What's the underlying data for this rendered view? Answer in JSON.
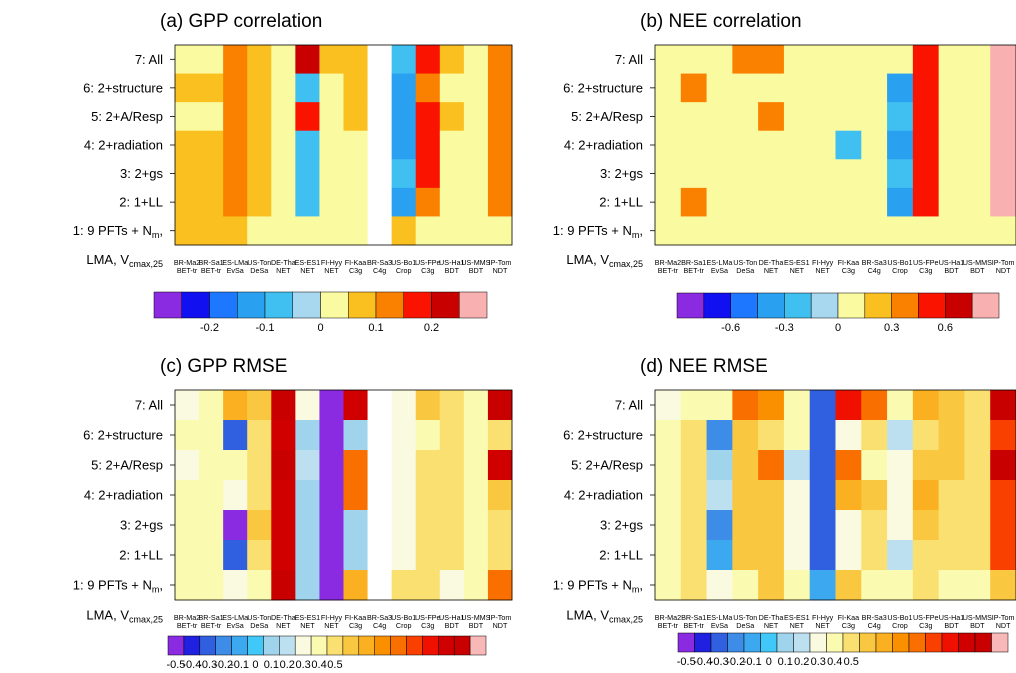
{
  "chart_data": [
    {
      "type": "heatmap",
      "title": "(a) GPP correlation",
      "rows": [
        "7: All",
        "6: 2+structure",
        "5: 2+A/Resp",
        "4: 2+radiation",
        "3: 2+gs",
        "2: 1+LL",
        "1: 9 PFTs + N",
        "LMA, V"
      ],
      "columns": [
        "BR-Ma2",
        "BR-Sa1",
        "ES-LMa",
        "US-Ton",
        "DE-Tha",
        "ES-ES1",
        "FI-Hyy",
        "FI-Kaa",
        "BR-Sa3",
        "US-Bo1",
        "US-FPe",
        "US-Ha1",
        "US-MMS",
        "IP-Tom"
      ],
      "pft_labels": [
        "BET-tr",
        "BET-tr",
        "EvSa",
        "DeSa",
        "NET",
        "NET",
        "NET",
        "C3g",
        "C4g",
        "Crop",
        "C3g",
        "BDT",
        "BDT",
        "NDT"
      ],
      "values": [
        [
          0.0,
          0.0,
          0.1,
          0.05,
          0.0,
          0.2,
          0.05,
          0.05,
          null,
          -0.1,
          0.15,
          0.05,
          0.0,
          0.1
        ],
        [
          0.05,
          0.05,
          0.1,
          0.05,
          0.0,
          -0.1,
          0.0,
          0.05,
          null,
          -0.15,
          0.1,
          0.0,
          0.0,
          0.1
        ],
        [
          0.0,
          0.0,
          0.1,
          0.05,
          0.0,
          0.15,
          0.0,
          0.05,
          null,
          -0.15,
          0.15,
          0.05,
          0.0,
          0.1
        ],
        [
          0.05,
          0.05,
          0.1,
          0.05,
          0.0,
          -0.1,
          0.0,
          0.0,
          null,
          -0.15,
          0.15,
          0.0,
          0.0,
          0.1
        ],
        [
          0.05,
          0.05,
          0.1,
          0.05,
          0.0,
          -0.1,
          0.0,
          0.0,
          null,
          -0.1,
          0.15,
          0.0,
          0.0,
          0.1
        ],
        [
          0.05,
          0.05,
          0.1,
          0.05,
          0.0,
          -0.1,
          0.0,
          0.0,
          null,
          -0.15,
          0.1,
          0.0,
          0.0,
          0.1
        ],
        [
          0.05,
          0.05,
          0.05,
          0.0,
          0.0,
          0.0,
          0.0,
          0.0,
          null,
          0.05,
          0.0,
          0.0,
          0.0,
          0.0
        ]
      ],
      "colorbar_ticks": [
        "-0.2",
        "-0.1",
        "0",
        "0.1",
        "0.2"
      ]
    },
    {
      "type": "heatmap",
      "title": "(b) NEE correlation",
      "rows": [
        "7: All",
        "6: 2+structure",
        "5: 2+A/Resp",
        "4: 2+radiation",
        "3: 2+gs",
        "2: 1+LL",
        "1: 9 PFTs + N",
        "LMA, V"
      ],
      "columns": [
        "BR-Ma2",
        "BR-Sa1",
        "ES-LMa",
        "US-Ton",
        "DE-Tha",
        "ES-ES1",
        "FI-Hyy",
        "FI-Kaa",
        "BR-Sa3",
        "US-Bo1",
        "US-FPe",
        "US-Ha1",
        "US-MMS",
        "IP-Tom"
      ],
      "pft_labels": [
        "BET-tr",
        "BET-tr",
        "EvSa",
        "DeSa",
        "NET",
        "NET",
        "NET",
        "C3g",
        "C4g",
        "Crop",
        "C3g",
        "BDT",
        "BDT",
        "NDT"
      ],
      "values": [
        [
          0.0,
          0.1,
          0.1,
          0.3,
          0.3,
          0.1,
          0.1,
          0.1,
          0.1,
          0.1,
          0.45,
          0.1,
          0.1,
          0.9
        ],
        [
          0.1,
          0.3,
          0.1,
          0.1,
          0.1,
          0.1,
          0.0,
          0.0,
          0.1,
          -0.45,
          0.45,
          0.1,
          0.1,
          0.9
        ],
        [
          0.0,
          0.1,
          0.1,
          0.1,
          0.3,
          0.1,
          0.1,
          0.1,
          0.0,
          -0.3,
          0.45,
          0.1,
          0.0,
          0.9
        ],
        [
          0.1,
          0.1,
          0.1,
          0.1,
          0.1,
          0.0,
          0.1,
          -0.3,
          0.0,
          -0.45,
          0.45,
          0.0,
          0.0,
          0.9
        ],
        [
          0.1,
          0.1,
          0.1,
          0.0,
          0.1,
          0.0,
          0.1,
          0.0,
          0.1,
          -0.3,
          0.45,
          0.0,
          0.0,
          0.9
        ],
        [
          0.1,
          0.3,
          0.1,
          0.1,
          0.1,
          0.0,
          0.1,
          0.0,
          0.1,
          -0.45,
          0.45,
          0.0,
          0.0,
          0.9
        ],
        [
          0.1,
          0.1,
          0.1,
          0.0,
          0.1,
          0.1,
          0.1,
          0.0,
          0.1,
          0.1,
          0.0,
          0.0,
          0.0,
          0.1
        ]
      ],
      "colorbar_ticks": [
        "-0.6",
        "-0.3",
        "0",
        "0.3",
        "0.6"
      ]
    },
    {
      "type": "heatmap",
      "title": "(c) GPP RMSE",
      "rows": [
        "7: All",
        "6: 2+structure",
        "5: 2+A/Resp",
        "4: 2+radiation",
        "3: 2+gs",
        "2: 1+LL",
        "1: 9 PFTs + N",
        "LMA, V"
      ],
      "columns": [
        "BR-Ma2",
        "BR-Sa1",
        "ES-LMa",
        "US-Ton",
        "DE-Tha",
        "ES-ES1",
        "FI-Hyy",
        "FI-Kaa",
        "BR-Sa3",
        "US-Bo1",
        "US-FPe",
        "US-Ha1",
        "US-MMS",
        "IP-Tom"
      ],
      "pft_labels": [
        "BET-tr",
        "BET-tr",
        "EvSa",
        "DeSa",
        "NET",
        "NET",
        "NET",
        "C3g",
        "C4g",
        "Crop",
        "C3g",
        "BDT",
        "BDT",
        "NDT"
      ],
      "values": [
        [
          -0.1,
          -0.05,
          0.15,
          0.1,
          0.45,
          -0.1,
          -0.5,
          0.4,
          null,
          -0.1,
          0.1,
          0.05,
          -0.05,
          0.45
        ],
        [
          -0.05,
          -0.05,
          -0.4,
          0.05,
          0.4,
          -0.2,
          -0.5,
          -0.2,
          null,
          -0.1,
          -0.05,
          0.05,
          -0.05,
          0.05
        ],
        [
          -0.1,
          -0.05,
          -0.05,
          0.05,
          0.45,
          -0.15,
          -0.5,
          0.25,
          null,
          -0.1,
          0.05,
          0.05,
          -0.05,
          0.4
        ],
        [
          -0.05,
          -0.05,
          -0.1,
          0.05,
          0.4,
          -0.2,
          -0.5,
          0.25,
          null,
          -0.1,
          0.05,
          0.05,
          -0.05,
          0.1
        ],
        [
          -0.05,
          -0.05,
          -0.5,
          0.1,
          0.4,
          -0.2,
          -0.5,
          -0.2,
          null,
          -0.1,
          0.05,
          0.05,
          -0.05,
          0.05
        ],
        [
          -0.05,
          -0.05,
          -0.4,
          0.05,
          0.4,
          -0.2,
          -0.5,
          -0.2,
          null,
          -0.1,
          0.05,
          0.05,
          -0.05,
          0.05
        ],
        [
          -0.05,
          -0.05,
          -0.1,
          -0.05,
          0.45,
          -0.2,
          -0.5,
          0.15,
          null,
          0.05,
          0.05,
          -0.1,
          -0.05,
          0.25
        ]
      ],
      "colorbar_ticks": [
        "-0.5",
        "-0.4",
        "-0.3",
        "-0.2",
        "-0.1",
        "0",
        "0.1",
        "0.2",
        "0.3",
        "0.4",
        "0.5"
      ]
    },
    {
      "type": "heatmap",
      "title": "(d) NEE RMSE",
      "rows": [
        "7: All",
        "6: 2+structure",
        "5: 2+A/Resp",
        "4: 2+radiation",
        "3: 2+gs",
        "2: 1+LL",
        "1: 9 PFTs + N",
        "LMA, V"
      ],
      "columns": [
        "BR-Ma2",
        "BR-Sa1",
        "ES-LMa",
        "US-Ton",
        "DE-Tha",
        "ES-ES1",
        "FI-Hyy",
        "FI-Kaa",
        "BR-Sa3",
        "US-Bo1",
        "US-FPe",
        "US-Ha1",
        "US-MMS",
        "IP-Tom"
      ],
      "pft_labels": [
        "BET-tr",
        "BET-tr",
        "EvSa",
        "DeSa",
        "NET",
        "NET",
        "NET",
        "C3g",
        "C4g",
        "Crop",
        "C3g",
        "BDT",
        "BDT",
        "NDT"
      ],
      "values": [
        [
          -0.1,
          -0.05,
          -0.05,
          0.25,
          0.2,
          -0.05,
          -0.4,
          0.35,
          0.25,
          -0.05,
          0.15,
          0.1,
          0.05,
          0.45
        ],
        [
          -0.05,
          0.05,
          -0.35,
          0.1,
          0.05,
          -0.05,
          -0.4,
          -0.1,
          0.05,
          -0.15,
          0.05,
          0.1,
          0.05,
          0.3
        ],
        [
          -0.05,
          0.05,
          -0.2,
          0.1,
          0.25,
          -0.15,
          -0.4,
          0.25,
          -0.05,
          -0.1,
          0.1,
          0.1,
          0.05,
          0.45
        ],
        [
          -0.05,
          0.05,
          -0.15,
          0.1,
          0.1,
          -0.1,
          -0.4,
          0.15,
          0.1,
          -0.1,
          0.15,
          0.05,
          0.05,
          0.3
        ],
        [
          -0.05,
          0.05,
          -0.35,
          0.1,
          0.1,
          -0.1,
          -0.4,
          -0.1,
          0.05,
          -0.1,
          0.1,
          0.05,
          0.05,
          0.3
        ],
        [
          -0.05,
          0.05,
          -0.3,
          0.1,
          0.1,
          -0.1,
          -0.4,
          -0.1,
          0.05,
          -0.15,
          0.05,
          0.05,
          0.05,
          0.3
        ],
        [
          -0.05,
          0.05,
          -0.1,
          -0.05,
          0.1,
          -0.05,
          -0.3,
          0.1,
          -0.05,
          -0.05,
          0.05,
          -0.05,
          -0.05,
          0.1
        ]
      ],
      "colorbar_ticks": [
        "-0.5",
        "-0.4",
        "-0.3",
        "-0.2",
        "-0.1",
        "0",
        "0.1",
        "0.2",
        "0.3",
        "0.4",
        "0.5"
      ]
    }
  ],
  "subscripts": {
    "nm": "m",
    "vcmax": "cmax,25"
  },
  "colors": {
    "corr_scale": [
      "#8a2be2",
      "#1010f0",
      "#1e78ff",
      "#2aa0f0",
      "#40c0f0",
      "#a8d8f0",
      "#fafaa0",
      "#fac020",
      "#fa8000",
      "#fa1400",
      "#c80000",
      "#f8b0b0"
    ],
    "rmse_scale": [
      "#8a2be2",
      "#2020e0",
      "#3060e0",
      "#3c8ce8",
      "#3ca8f0",
      "#40c8f8",
      "#a0d4ec",
      "#bce0f0",
      "#fafae0",
      "#fafab0",
      "#fae070",
      "#fac840",
      "#fab020",
      "#fa9000",
      "#fa7000",
      "#fa4000",
      "#f01000",
      "#d00000",
      "#c80000",
      "#f8b8b8"
    ]
  }
}
